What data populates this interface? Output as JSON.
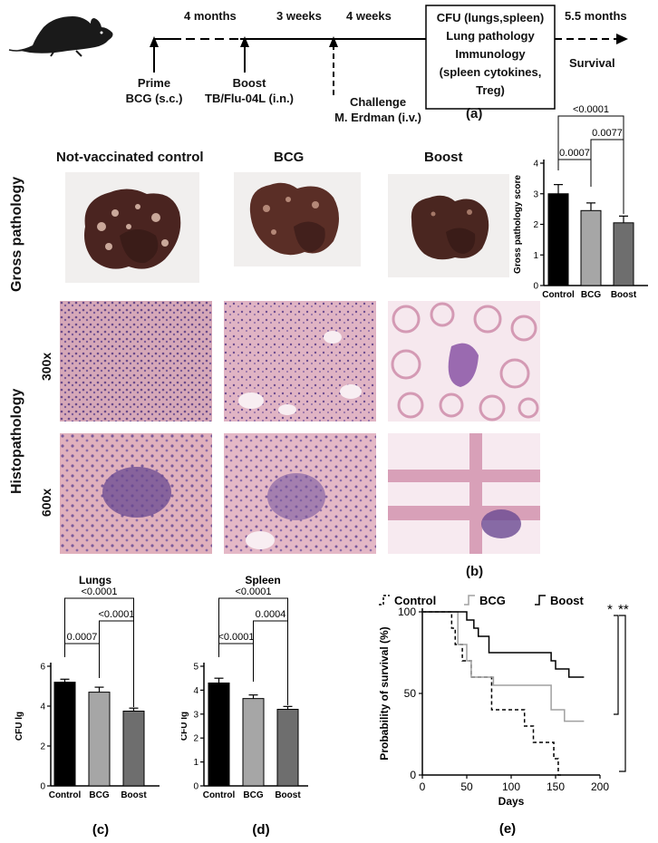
{
  "timeline": {
    "intervals": [
      "4 months",
      "3 weeks",
      "4 weeks",
      "5.5 months"
    ],
    "prime": [
      "Prime",
      "BCG (s.c.)"
    ],
    "boost": [
      "Boost",
      "TB/Flu-04L (i.n.)"
    ],
    "challenge": [
      "Challenge",
      "M. Erdman (i.v.)"
    ],
    "box_lines": [
      "CFU (lungs,spleen)",
      "Lung pathology",
      "Immunology",
      "(spleen cytokines,",
      "Treg)"
    ],
    "survival": "Survival",
    "panel_label": "(a)"
  },
  "pathology": {
    "column_headers": [
      "Not-vaccinated control",
      "BCG",
      "Boost"
    ],
    "row_gross": "Gross pathology",
    "row_histo": "Histopathology",
    "mag_300": "300x",
    "mag_600": "600x",
    "panel_label": "(b)"
  },
  "chart_data": [
    {
      "id": "gross",
      "type": "bar",
      "title": "",
      "ylabel": "Gross pathology score",
      "xlabel": "",
      "categories": [
        "Control",
        "BCG",
        "Boost"
      ],
      "values": [
        3.0,
        2.45,
        2.05
      ],
      "errors": [
        0.3,
        0.25,
        0.22
      ],
      "ylim": [
        0,
        4
      ],
      "yticks": [
        0,
        1,
        2,
        3,
        4
      ],
      "colors": [
        "#000000",
        "#a6a6a6",
        "#6e6e6e"
      ],
      "comparisons": [
        {
          "from": 0,
          "to": 1,
          "p": "0.0007"
        },
        {
          "from": 1,
          "to": 2,
          "p": "0.0077"
        },
        {
          "from": 0,
          "to": 2,
          "p": "<0.0001"
        }
      ]
    },
    {
      "id": "lungs",
      "type": "bar",
      "title": "Lungs",
      "ylabel": "CFU lg",
      "xlabel": "",
      "categories": [
        "Control",
        "BCG",
        "Boost"
      ],
      "values": [
        5.2,
        4.7,
        3.75
      ],
      "errors": [
        0.15,
        0.25,
        0.15
      ],
      "ylim": [
        0,
        6
      ],
      "yticks": [
        0,
        2,
        4,
        6
      ],
      "colors": [
        "#000000",
        "#a6a6a6",
        "#6e6e6e"
      ],
      "comparisons": [
        {
          "from": 0,
          "to": 1,
          "p": "0.0007"
        },
        {
          "from": 1,
          "to": 2,
          "p": "<0.0001"
        },
        {
          "from": 0,
          "to": 2,
          "p": "<0.0001"
        }
      ],
      "panel_label": "(c)"
    },
    {
      "id": "spleen",
      "type": "bar",
      "title": "Spleen",
      "ylabel": "CFU lg",
      "xlabel": "",
      "categories": [
        "Control",
        "BCG",
        "Boost"
      ],
      "values": [
        4.3,
        3.65,
        3.2
      ],
      "errors": [
        0.2,
        0.15,
        0.12
      ],
      "ylim": [
        0,
        5
      ],
      "yticks": [
        0,
        1,
        2,
        3,
        4,
        5
      ],
      "colors": [
        "#000000",
        "#a6a6a6",
        "#6e6e6e"
      ],
      "comparisons": [
        {
          "from": 0,
          "to": 1,
          "p": "<0.0001"
        },
        {
          "from": 1,
          "to": 2,
          "p": "0.0004"
        },
        {
          "from": 0,
          "to": 2,
          "p": "<0.0001"
        }
      ],
      "panel_label": "(d)"
    },
    {
      "id": "survival",
      "type": "line",
      "title": "",
      "xlabel": "Days",
      "ylabel": "Probability of survival (%)",
      "xlim": [
        0,
        200
      ],
      "ylim": [
        0,
        100
      ],
      "xticks": [
        0,
        50,
        100,
        150,
        200
      ],
      "yticks": [
        0,
        50,
        100
      ],
      "significance": [
        "*",
        "**"
      ],
      "series": [
        {
          "name": "Control",
          "dash": true,
          "color": "#000000",
          "x": [
            0,
            33,
            33,
            37,
            37,
            45,
            45,
            55,
            55,
            78,
            78,
            115,
            115,
            125,
            125,
            148,
            148,
            153,
            153,
            157
          ],
          "y": [
            100,
            100,
            90,
            90,
            80,
            80,
            70,
            70,
            60,
            60,
            40,
            40,
            30,
            30,
            20,
            20,
            10,
            10,
            0,
            0
          ]
        },
        {
          "name": "BCG",
          "dash": false,
          "color": "#a0a0a0",
          "x": [
            0,
            40,
            40,
            50,
            50,
            55,
            55,
            80,
            80,
            100,
            100,
            145,
            145,
            160,
            160,
            182
          ],
          "y": [
            100,
            100,
            80,
            80,
            70,
            70,
            60,
            60,
            55,
            55,
            55,
            55,
            40,
            40,
            33,
            33
          ]
        },
        {
          "name": "Boost",
          "dash": false,
          "color": "#000000",
          "x": [
            0,
            50,
            50,
            58,
            58,
            63,
            63,
            75,
            75,
            98,
            98,
            145,
            145,
            150,
            150,
            165,
            165,
            175,
            175,
            182
          ],
          "y": [
            100,
            100,
            95,
            95,
            90,
            90,
            85,
            85,
            75,
            75,
            75,
            75,
            70,
            70,
            65,
            65,
            60,
            60,
            60,
            60
          ]
        }
      ],
      "panel_label": "(e)"
    }
  ]
}
